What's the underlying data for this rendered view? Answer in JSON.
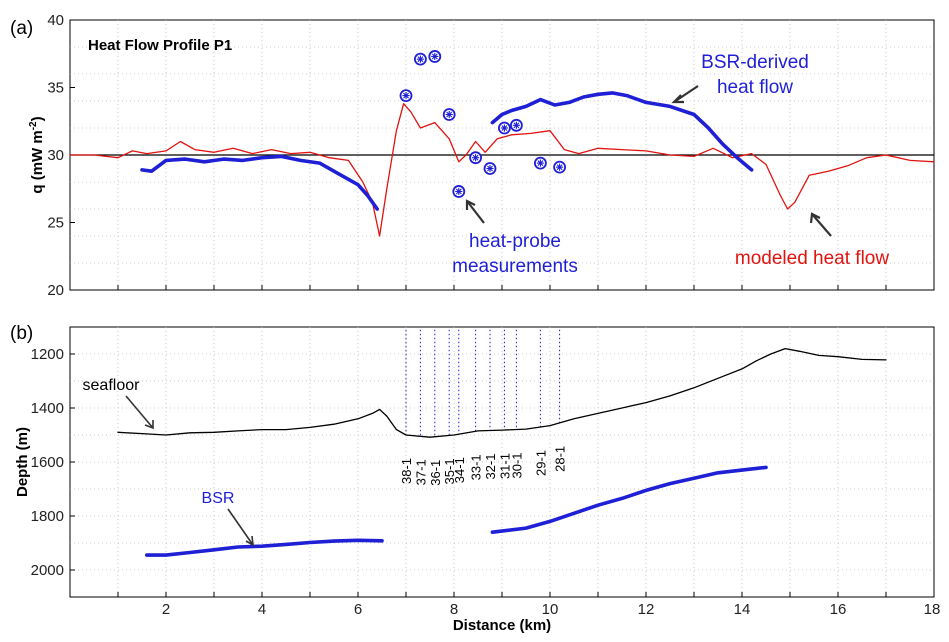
{
  "colors": {
    "blue": "#1f1fd6",
    "red": "#e0130f",
    "black": "#000000",
    "grid": "#bfbfbf"
  },
  "chart_data": [
    {
      "type": "line",
      "panel_label": "(a)",
      "title": "Heat Flow Profile P1",
      "ylabel": "q (mW m",
      "ylabel_sup": "-2",
      "ylabel_end": ")",
      "xlim": [
        0,
        18
      ],
      "ylim": [
        20,
        40
      ],
      "yticks": [
        20,
        25,
        30,
        35,
        40
      ],
      "reference_line": 30,
      "series": [
        {
          "name": "modeled heat flow",
          "color": "red",
          "x": [
            0,
            0.5,
            1.0,
            1.3,
            1.6,
            2.0,
            2.3,
            2.6,
            3.0,
            3.4,
            3.8,
            4.2,
            4.6,
            5.0,
            5.4,
            5.8,
            6.1,
            6.3,
            6.45,
            6.6,
            6.8,
            6.95,
            7.1,
            7.3,
            7.6,
            7.9,
            8.1,
            8.25,
            8.45,
            8.65,
            8.9,
            9.2,
            9.6,
            10.0,
            10.3,
            10.6,
            11.0,
            11.5,
            12.0,
            12.5,
            13.0,
            13.4,
            13.8,
            14.2,
            14.5,
            14.8,
            14.95,
            15.1,
            15.4,
            15.8,
            16.2,
            16.6,
            17.0,
            17.5,
            18.0
          ],
          "values": [
            30,
            30,
            29.8,
            30.3,
            30.1,
            30.3,
            31.0,
            30.4,
            30.2,
            30.5,
            30.1,
            30.4,
            30.1,
            30.2,
            29.8,
            29.6,
            28.0,
            26.5,
            24.0,
            27.5,
            31.8,
            33.8,
            33.2,
            32.0,
            32.4,
            31.2,
            29.5,
            30.0,
            31.0,
            30.2,
            31.2,
            31.5,
            31.6,
            31.8,
            30.4,
            30.1,
            30.5,
            30.4,
            30.3,
            30.0,
            29.9,
            30.5,
            29.8,
            30.1,
            29.3,
            27.0,
            26.0,
            26.5,
            28.5,
            28.8,
            29.2,
            29.8,
            30.0,
            29.6,
            29.5
          ]
        },
        {
          "name": "BSR-derived heat flow (west)",
          "color": "blue",
          "x": [
            1.5,
            1.7,
            2.0,
            2.4,
            2.8,
            3.2,
            3.6,
            4.0,
            4.4,
            4.8,
            5.2,
            5.6,
            6.0,
            6.2,
            6.4
          ],
          "values": [
            28.9,
            28.8,
            29.6,
            29.7,
            29.5,
            29.7,
            29.6,
            29.8,
            29.9,
            29.6,
            29.4,
            28.6,
            27.8,
            27.0,
            26.0
          ]
        },
        {
          "name": "BSR-derived heat flow (east)",
          "color": "blue",
          "x": [
            8.8,
            9.0,
            9.2,
            9.5,
            9.8,
            10.1,
            10.4,
            10.7,
            11.0,
            11.3,
            11.6,
            12.0,
            12.5,
            13.0,
            13.3,
            13.6,
            13.9,
            14.2
          ],
          "values": [
            32.4,
            33.0,
            33.3,
            33.6,
            34.1,
            33.7,
            33.9,
            34.3,
            34.5,
            34.6,
            34.4,
            33.9,
            33.6,
            33.0,
            32.0,
            30.8,
            29.8,
            28.9
          ]
        }
      ],
      "heat_probe_measurements": {
        "name": "heat-probe measurements",
        "color": "blue",
        "x": [
          7.0,
          7.3,
          7.6,
          7.9,
          8.1,
          8.45,
          8.75,
          9.05,
          9.3,
          9.8,
          10.2
        ],
        "values": [
          34.4,
          37.1,
          37.3,
          33.0,
          27.3,
          29.8,
          29.0,
          32.0,
          32.2,
          29.4,
          29.1
        ]
      },
      "annotations": [
        {
          "text": "BSR-derived",
          "color": "blue"
        },
        {
          "text": "heat flow",
          "color": "blue"
        },
        {
          "text": "heat-probe",
          "color": "blue"
        },
        {
          "text": "measurements",
          "color": "blue"
        },
        {
          "text": "modeled heat flow",
          "color": "red"
        }
      ]
    },
    {
      "type": "line",
      "panel_label": "(b)",
      "xlabel": "Distance (km)",
      "ylabel": "Depth (m)",
      "xlim": [
        0,
        18
      ],
      "ylim": [
        1100,
        2100
      ],
      "yticks": [
        1200,
        1400,
        1600,
        1800,
        2000
      ],
      "xticks": [
        2,
        4,
        6,
        8,
        10,
        12,
        14,
        16,
        18
      ],
      "y_reversed": true,
      "series": [
        {
          "name": "seafloor",
          "color": "black",
          "x": [
            1.0,
            1.5,
            2.0,
            2.5,
            3.0,
            3.5,
            4.0,
            4.5,
            5.0,
            5.5,
            6.0,
            6.3,
            6.45,
            6.6,
            6.8,
            7.0,
            7.5,
            8.0,
            8.5,
            9.0,
            9.5,
            10.0,
            10.5,
            11.0,
            11.5,
            12.0,
            12.5,
            13.0,
            13.5,
            14.0,
            14.3,
            14.6,
            14.9,
            15.2,
            15.6,
            16.0,
            16.5,
            17.0
          ],
          "values": [
            1490,
            1495,
            1500,
            1492,
            1490,
            1485,
            1480,
            1480,
            1472,
            1460,
            1440,
            1420,
            1405,
            1430,
            1480,
            1500,
            1508,
            1500,
            1485,
            1482,
            1478,
            1465,
            1440,
            1420,
            1400,
            1380,
            1355,
            1325,
            1290,
            1255,
            1225,
            1200,
            1180,
            1190,
            1205,
            1210,
            1220,
            1222
          ]
        },
        {
          "name": "BSR (west)",
          "color": "blue",
          "x": [
            1.6,
            2.0,
            2.5,
            3.0,
            3.5,
            4.0,
            4.5,
            5.0,
            5.5,
            6.0,
            6.5
          ],
          "values": [
            1945,
            1945,
            1935,
            1925,
            1915,
            1912,
            1905,
            1898,
            1893,
            1890,
            1892
          ]
        },
        {
          "name": "BSR (east)",
          "color": "blue",
          "x": [
            8.8,
            9.5,
            10.0,
            10.5,
            11.0,
            11.5,
            12.0,
            12.5,
            13.0,
            13.5,
            14.0,
            14.5
          ],
          "values": [
            1860,
            1845,
            1820,
            1790,
            1760,
            1735,
            1705,
            1680,
            1660,
            1640,
            1630,
            1620
          ]
        }
      ],
      "stations": {
        "labels": [
          "38-1",
          "37-1",
          "36-1",
          "35-1",
          "34-1",
          "33-1",
          "32-1",
          "31-1",
          "30-1",
          "29-1",
          "28-1"
        ],
        "x": [
          7.0,
          7.3,
          7.6,
          7.9,
          8.1,
          8.45,
          8.75,
          9.05,
          9.3,
          9.8,
          10.2
        ],
        "top_depth": 1110
      },
      "annotations": [
        {
          "text": "seafloor",
          "color": "black"
        },
        {
          "text": "BSR",
          "color": "blue"
        }
      ]
    }
  ]
}
